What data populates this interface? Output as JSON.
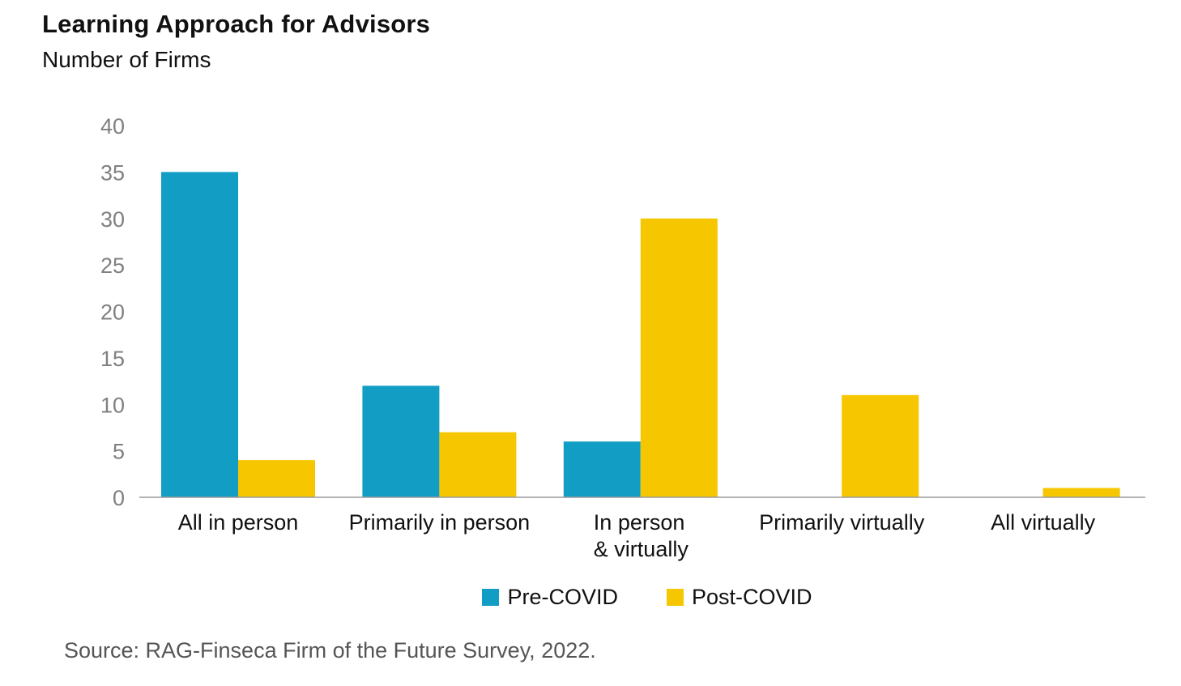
{
  "chart_data": {
    "type": "bar",
    "title": "Learning Approach for Advisors",
    "subtitle": "Number of Firms",
    "categories": [
      [
        "All in person"
      ],
      [
        "Primarily in person"
      ],
      [
        "In person",
        "& virtually"
      ],
      [
        "Primarily virtually"
      ],
      [
        "All virtually"
      ]
    ],
    "series": [
      {
        "name": "Pre-COVID",
        "color": "#129ec4",
        "values": [
          35,
          12,
          6,
          0,
          0
        ]
      },
      {
        "name": "Post-COVID",
        "color": "#f6c700",
        "values": [
          4,
          7,
          30,
          11,
          1
        ]
      }
    ],
    "ylim": [
      0,
      40
    ],
    "yticks": [
      0,
      5,
      10,
      15,
      20,
      25,
      30,
      35,
      40
    ],
    "grid": false,
    "legend_position": "bottom",
    "source": "Source: RAG-Finseca Firm of the Future Survey, 2022."
  }
}
